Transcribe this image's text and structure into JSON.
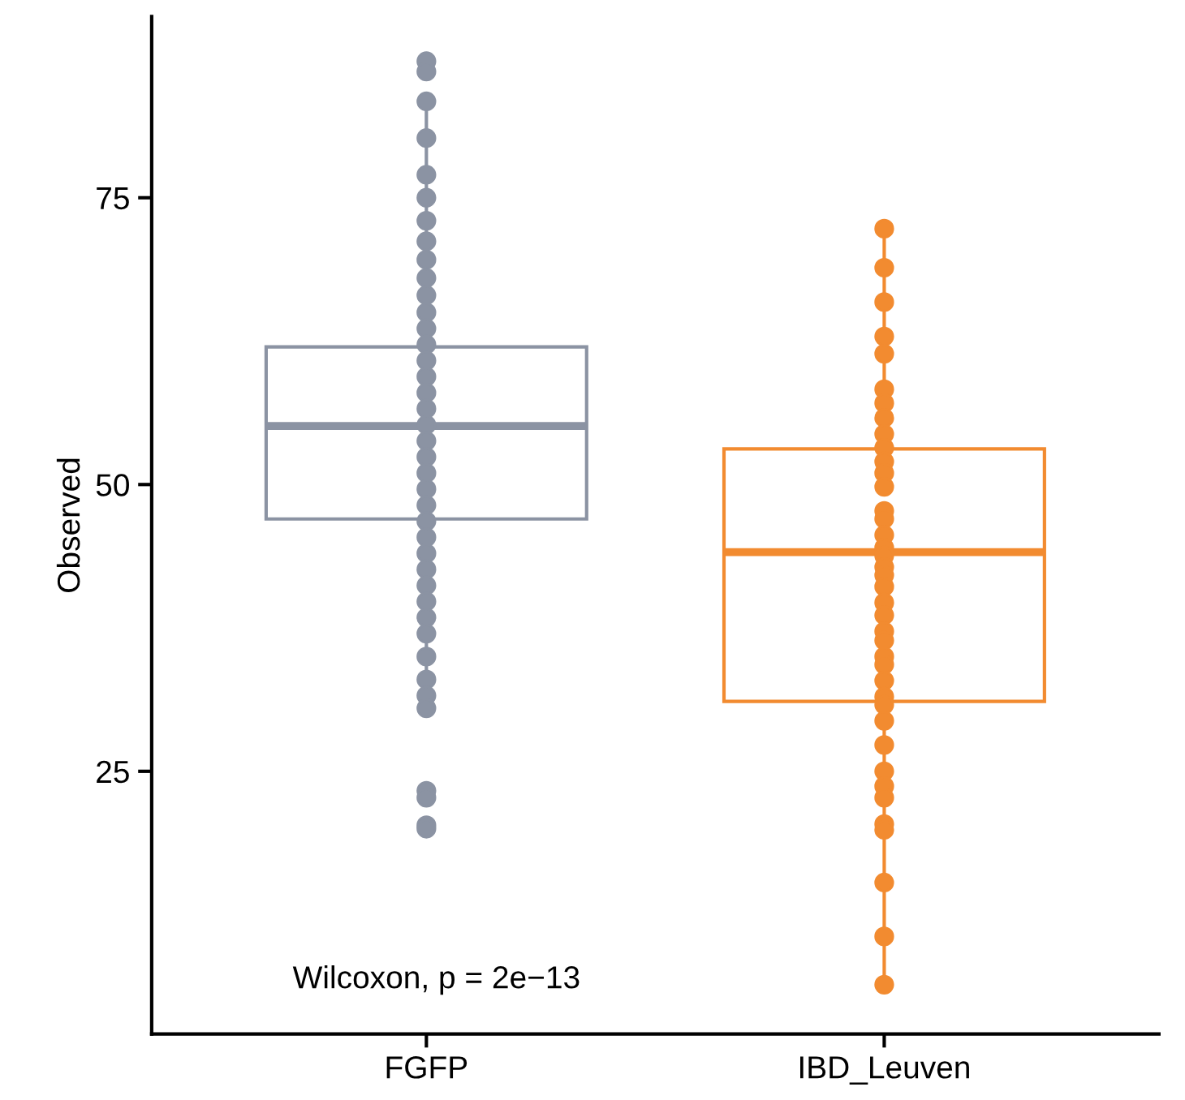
{
  "chart_data": {
    "type": "box",
    "ylabel": "Observed",
    "categories": [
      "FGFP",
      "IBD_Leuven"
    ],
    "colors": [
      "#8b93a3",
      "#f28b30"
    ],
    "boxes": [
      {
        "low": 31.2,
        "q1": 47.0,
        "median": 55.1,
        "q3": 62.0,
        "high": 82.6
      },
      {
        "low": 6.4,
        "q1": 31.1,
        "median": 44.1,
        "q3": 53.1,
        "high": 71.8
      }
    ],
    "series": [
      {
        "type": "scatter",
        "color": "#8b93a3",
        "x": [
          "FGFP",
          "FGFP",
          "FGFP",
          "FGFP",
          "FGFP",
          "FGFP",
          "FGFP",
          "FGFP",
          "FGFP",
          "FGFP",
          "FGFP",
          "FGFP",
          "FGFP",
          "FGFP",
          "FGFP",
          "FGFP",
          "FGFP",
          "FGFP",
          "FGFP",
          "FGFP",
          "FGFP",
          "FGFP",
          "FGFP",
          "FGFP",
          "FGFP",
          "FGFP",
          "FGFP",
          "FGFP",
          "FGFP",
          "FGFP",
          "FGFP",
          "FGFP",
          "FGFP",
          "FGFP",
          "FGFP",
          "FGFP",
          "FGFP",
          "FGFP",
          "FGFP",
          "FGFP"
        ],
        "values": [
          86.9,
          86.0,
          83.4,
          80.2,
          77.0,
          75.0,
          73.0,
          71.2,
          69.6,
          68.0,
          66.5,
          65.0,
          63.6,
          62.2,
          60.8,
          59.4,
          58.0,
          56.6,
          55.2,
          53.8,
          52.4,
          51.0,
          49.6,
          48.2,
          46.8,
          45.4,
          44.0,
          42.6,
          41.2,
          39.8,
          38.4,
          37.0,
          35.0,
          33.0,
          31.6,
          30.5,
          23.3,
          22.7,
          20.3,
          20.0
        ]
      },
      {
        "type": "scatter",
        "color": "#f28b30",
        "x": [
          "IBD_Leuven",
          "IBD_Leuven",
          "IBD_Leuven",
          "IBD_Leuven",
          "IBD_Leuven",
          "IBD_Leuven",
          "IBD_Leuven",
          "IBD_Leuven",
          "IBD_Leuven",
          "IBD_Leuven",
          "IBD_Leuven",
          "IBD_Leuven",
          "IBD_Leuven",
          "IBD_Leuven",
          "IBD_Leuven",
          "IBD_Leuven",
          "IBD_Leuven",
          "IBD_Leuven",
          "IBD_Leuven",
          "IBD_Leuven",
          "IBD_Leuven",
          "IBD_Leuven",
          "IBD_Leuven",
          "IBD_Leuven",
          "IBD_Leuven",
          "IBD_Leuven",
          "IBD_Leuven",
          "IBD_Leuven",
          "IBD_Leuven",
          "IBD_Leuven",
          "IBD_Leuven",
          "IBD_Leuven",
          "IBD_Leuven",
          "IBD_Leuven",
          "IBD_Leuven",
          "IBD_Leuven",
          "IBD_Leuven",
          "IBD_Leuven",
          "IBD_Leuven",
          "IBD_Leuven"
        ],
        "values": [
          72.3,
          68.9,
          65.9,
          62.9,
          61.4,
          58.3,
          57.1,
          55.8,
          54.4,
          53.2,
          52.0,
          51.0,
          49.8,
          47.7,
          47.0,
          45.6,
          44.5,
          43.8,
          42.8,
          42.1,
          41.1,
          39.7,
          38.6,
          37.2,
          36.4,
          35.0,
          34.3,
          32.9,
          31.5,
          30.8,
          29.4,
          27.3,
          25.0,
          23.7,
          22.7,
          20.4,
          19.9,
          15.3,
          10.6,
          6.4
        ]
      }
    ],
    "ylim": [
      2.1,
      90.8
    ],
    "yticks": [
      25,
      50,
      75
    ],
    "grid": false,
    "legend": false,
    "marker": "circle",
    "annotations": [
      "Wilcoxon, p = 2e−13"
    ]
  }
}
